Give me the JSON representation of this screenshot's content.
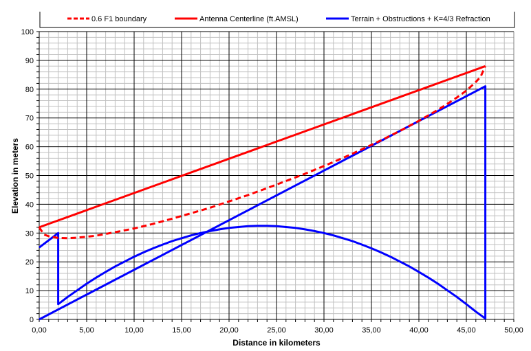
{
  "chart_data": {
    "type": "line",
    "title": "",
    "xlabel": "Distance in  kilometers",
    "ylabel": "Elevation in meters",
    "xlim": [
      0,
      50
    ],
    "ylim": [
      0,
      100
    ],
    "x_ticks": [
      "0,00",
      "5,00",
      "10,00",
      "15,00",
      "20,00",
      "25,00",
      "30,00",
      "35,00",
      "40,00",
      "45,00",
      "50,00"
    ],
    "y_ticks": [
      "0",
      "10",
      "20",
      "30",
      "40",
      "50",
      "60",
      "70",
      "80",
      "90",
      "100"
    ],
    "grid": true,
    "legend_position": "top",
    "series": [
      {
        "name": "0.6 F1 boundary",
        "color": "#ff0000",
        "style": "dashed",
        "points": [
          [
            0,
            32
          ],
          [
            0.5,
            29.5
          ],
          [
            1,
            28.9
          ],
          [
            2,
            28.3
          ],
          [
            3,
            28.2
          ],
          [
            4,
            28.4
          ],
          [
            5,
            28.7
          ],
          [
            6,
            29.1
          ],
          [
            8,
            30.3
          ],
          [
            10,
            31.6
          ],
          [
            12,
            33.2
          ],
          [
            14,
            35.0
          ],
          [
            16,
            36.9
          ],
          [
            18,
            38.8
          ],
          [
            20,
            41.0
          ],
          [
            22,
            43.2
          ],
          [
            24,
            45.6
          ],
          [
            26,
            48.1
          ],
          [
            28,
            50.6
          ],
          [
            30,
            53.3
          ],
          [
            32,
            56.1
          ],
          [
            34,
            59.1
          ],
          [
            36,
            62.2
          ],
          [
            38,
            65.5
          ],
          [
            40,
            69.0
          ],
          [
            42,
            72.8
          ],
          [
            43,
            74.9
          ],
          [
            44,
            77.1
          ],
          [
            45,
            79.5
          ],
          [
            46,
            82.5
          ],
          [
            46.5,
            84.3
          ],
          [
            47,
            88
          ]
        ]
      },
      {
        "name": "Antenna Centerline (ft.AMSL)",
        "color": "#ff0000",
        "style": "solid",
        "points": [
          [
            0,
            32
          ],
          [
            47,
            88
          ]
        ]
      },
      {
        "name": "Terrain + Obstructions + K=4/3 Refraction",
        "color": "#0000ff",
        "style": "solid",
        "points": [
          [
            0,
            25
          ],
          [
            2,
            30
          ],
          [
            2,
            5.3
          ],
          [
            3,
            7.8
          ],
          [
            4,
            10.1
          ],
          [
            5,
            12.4
          ],
          [
            6,
            14.5
          ],
          [
            7,
            16.5
          ],
          [
            8,
            18.4
          ],
          [
            9,
            20.1
          ],
          [
            10,
            21.8
          ],
          [
            11,
            23.3
          ],
          [
            12,
            24.7
          ],
          [
            13,
            26.0
          ],
          [
            14,
            27.2
          ],
          [
            15,
            28.2
          ],
          [
            16,
            29.2
          ],
          [
            17,
            30.0
          ],
          [
            18,
            30.7
          ],
          [
            19,
            31.3
          ],
          [
            20,
            31.8
          ],
          [
            21,
            32.1
          ],
          [
            22,
            32.4
          ],
          [
            23,
            32.5
          ],
          [
            24,
            32.5
          ],
          [
            25,
            32.4
          ],
          [
            26,
            32.1
          ],
          [
            27,
            31.8
          ],
          [
            28,
            31.3
          ],
          [
            29,
            30.7
          ],
          [
            30,
            30.0
          ],
          [
            31,
            29.2
          ],
          [
            32,
            28.2
          ],
          [
            33,
            27.2
          ],
          [
            34,
            26.0
          ],
          [
            35,
            24.7
          ],
          [
            36,
            23.3
          ],
          [
            37,
            21.8
          ],
          [
            38,
            20.1
          ],
          [
            39,
            18.4
          ],
          [
            40,
            16.5
          ],
          [
            41,
            14.5
          ],
          [
            42,
            12.4
          ],
          [
            43,
            10.1
          ],
          [
            44,
            7.8
          ],
          [
            45,
            5.3
          ],
          [
            46,
            2.7
          ],
          [
            47,
            0.3
          ],
          [
            47,
            81
          ],
          [
            0,
            0
          ]
        ]
      }
    ]
  }
}
